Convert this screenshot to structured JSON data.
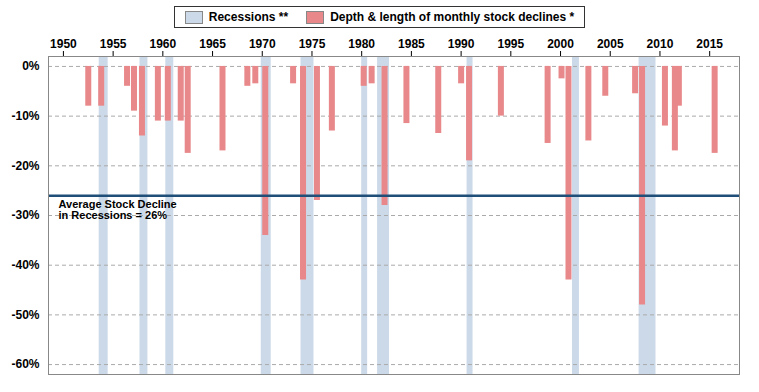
{
  "chart_data": {
    "type": "bar",
    "series": [
      {
        "name": "Recessions **",
        "type": "span",
        "color": "#ccd9e8",
        "ranges": [
          [
            1953.6,
            1954.5
          ],
          [
            1957.7,
            1958.5
          ],
          [
            1960.3,
            1961.1
          ],
          [
            1969.9,
            1970.9
          ],
          [
            1973.9,
            1975.2
          ],
          [
            1980.0,
            1980.6
          ],
          [
            1981.6,
            1982.8
          ],
          [
            1990.6,
            1991.2
          ],
          [
            2001.2,
            2001.9
          ],
          [
            2007.9,
            2009.6
          ]
        ]
      },
      {
        "name": "Depth & length of monthly stock declines *",
        "type": "bar",
        "color": "#e8888a",
        "x": [
          1952.5,
          1953.8,
          1956.4,
          1957.1,
          1957.9,
          1959.5,
          1960.5,
          1961.8,
          1962.5,
          1966.0,
          1968.5,
          1969.3,
          1970.3,
          1973.1,
          1974.1,
          1975.5,
          1977.0,
          1980.2,
          1981.0,
          1982.3,
          1984.5,
          1987.7,
          1990.0,
          1990.8,
          1994.0,
          1998.7,
          2000.1,
          2000.8,
          2002.8,
          2004.5,
          2007.5,
          2008.2,
          2010.5,
          2011.5,
          2011.9,
          2015.5
        ],
        "values": [
          -8.0,
          -8.0,
          -4.0,
          -9.0,
          -14.0,
          -11.0,
          -11.0,
          -11.0,
          -17.5,
          -17.0,
          -4.0,
          -3.5,
          -34.0,
          -3.5,
          -43.0,
          -27.0,
          -13.0,
          -4.0,
          -3.5,
          -28.0,
          -11.5,
          -13.5,
          -3.5,
          -19.0,
          -10.0,
          -15.5,
          -2.5,
          -43.0,
          -15.0,
          -6.0,
          -5.5,
          -48.0,
          -12.0,
          -17.0,
          -8.0,
          -17.5
        ]
      }
    ],
    "reference_lines": [
      {
        "y": -26,
        "color": "#1f4e79",
        "label": "Average Stock Decline\nin Recessions = 26%"
      }
    ],
    "xlim": [
      1948.5,
      2018.0
    ],
    "xticks": [
      1950,
      1955,
      1960,
      1965,
      1970,
      1975,
      1980,
      1985,
      1990,
      1995,
      2000,
      2005,
      2010,
      2015
    ],
    "ylim": [
      -62,
      2
    ],
    "yticks": [
      {
        "value": 0,
        "label": "0%"
      },
      {
        "value": -10,
        "label": "-10%"
      },
      {
        "value": -20,
        "label": "-20%"
      },
      {
        "value": -30,
        "label": "-30%"
      },
      {
        "value": -40,
        "label": "-40%"
      },
      {
        "value": -50,
        "label": "-50%"
      },
      {
        "value": -60,
        "label": "-60%"
      }
    ],
    "grid": true,
    "legend": "top"
  }
}
